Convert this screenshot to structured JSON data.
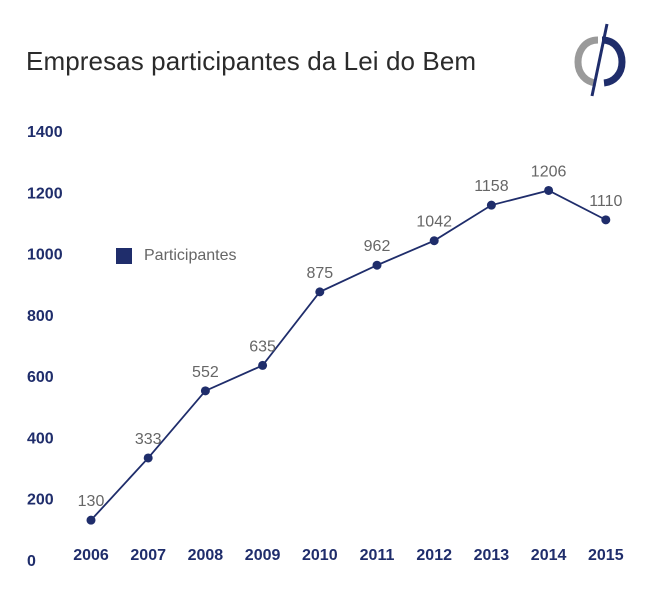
{
  "title": "Empresas participantes da Lei do Bem",
  "legend": {
    "label": "Participantes",
    "color": "#1f2d6b"
  },
  "logo": {
    "icon": "company-logo-icon",
    "colors": [
      "#9a9a9a",
      "#1f2d6b"
    ]
  },
  "chart_data": {
    "type": "line",
    "title": "Empresas participantes da Lei do Bem",
    "xlabel": "",
    "ylabel": "",
    "categories": [
      "2006",
      "2007",
      "2008",
      "2009",
      "2010",
      "2011",
      "2012",
      "2013",
      "2014",
      "2015"
    ],
    "series": [
      {
        "name": "Participantes",
        "values": [
          130,
          333,
          552,
          635,
          875,
          962,
          1042,
          1158,
          1206,
          1110
        ],
        "color": "#1f2d6b"
      }
    ],
    "y_ticks": [
      "0",
      "200",
      "400",
      "600",
      "800",
      "1000",
      "1200",
      "1400"
    ],
    "ylim": [
      0,
      1400
    ],
    "grid": false,
    "legend_position": "left"
  }
}
